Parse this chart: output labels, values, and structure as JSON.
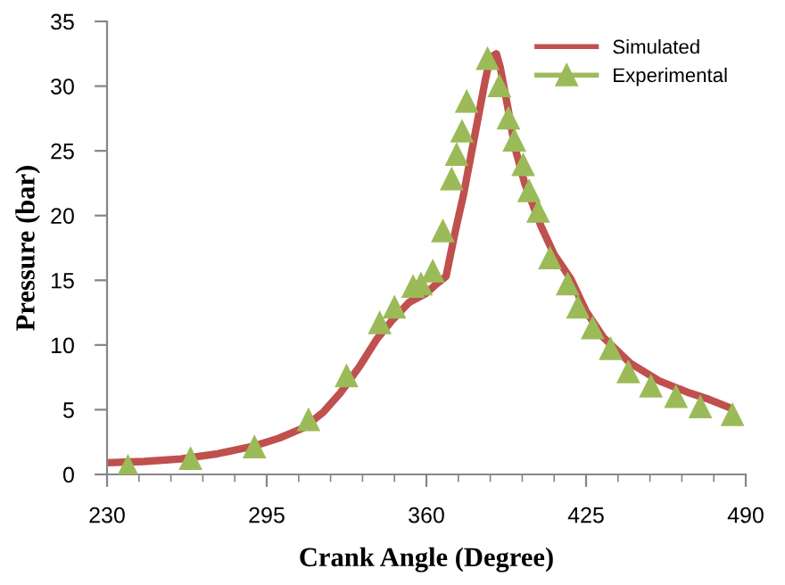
{
  "chart_data": {
    "type": "line",
    "xlabel": "Crank Angle (Degree)",
    "ylabel": "Pressure (bar)",
    "xlim": [
      230,
      490
    ],
    "xticks": [
      230,
      295,
      360,
      425,
      490
    ],
    "ylim": [
      0,
      35
    ],
    "yticks": [
      0,
      5,
      10,
      15,
      20,
      25,
      30,
      35
    ],
    "grid": false,
    "legend": "top right",
    "series": [
      {
        "name": "Simulated",
        "color": "#c0504d",
        "marker": "none",
        "line_style": "solid",
        "x": [
          230,
          245,
          260,
          275,
          290,
          300,
          310,
          318,
          325,
          333,
          340,
          346,
          353,
          360,
          364,
          368,
          372,
          375,
          380,
          384,
          386,
          388.5,
          390,
          393,
          396,
          400,
          406.6,
          412,
          418.8,
          425,
          432,
          443,
          455,
          467,
          475,
          483
        ],
        "values": [
          0.9,
          1.0,
          1.2,
          1.6,
          2.2,
          2.8,
          3.6,
          4.8,
          6.3,
          8.4,
          10.5,
          11.9,
          13.3,
          14.0,
          14.7,
          15.3,
          19.0,
          21.5,
          26.5,
          30.5,
          32.2,
          32.5,
          31.5,
          28.5,
          25.3,
          22.5,
          19.2,
          17.0,
          15.1,
          12.6,
          10.6,
          8.6,
          7.2,
          6.3,
          5.8,
          5.2
        ]
      },
      {
        "name": "Experimental",
        "type": "scatter",
        "color": "#9bbb59",
        "marker": "triangle",
        "x": [
          238.5,
          264,
          290,
          312,
          327.5,
          341,
          347,
          354.6,
          357.8,
          362.6,
          366.7,
          370.3,
          372.3,
          374.5,
          376.4,
          384.9,
          389.7,
          393.4,
          395.8,
          399.4,
          401.8,
          405.5,
          410.3,
          417.5,
          421.7,
          427.7,
          435,
          442.2,
          451.4,
          461.6,
          471.5,
          484.6
        ],
        "values": [
          0.6,
          1.2,
          2.1,
          4.2,
          7.6,
          11.7,
          12.9,
          14.5,
          14.7,
          15.7,
          18.8,
          22.8,
          24.7,
          26.5,
          28.8,
          32.1,
          30.0,
          27.5,
          25.8,
          23.9,
          21.9,
          20.3,
          16.7,
          14.7,
          12.9,
          11.3,
          9.7,
          7.9,
          6.8,
          6.0,
          5.2,
          4.6
        ]
      }
    ]
  }
}
